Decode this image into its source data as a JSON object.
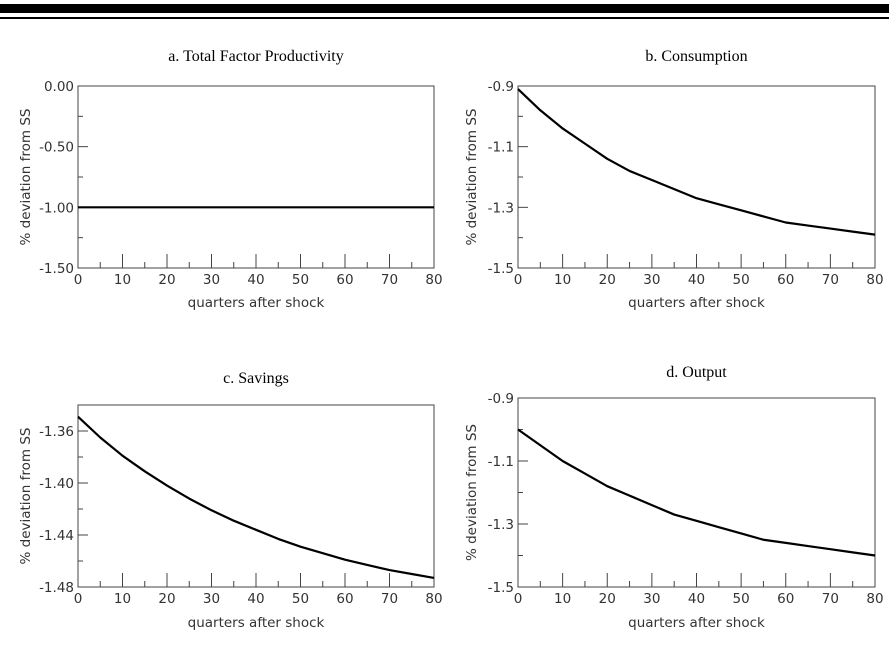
{
  "chart_data": [
    {
      "type": "line",
      "title": "a. Total Factor Productivity",
      "xlabel": "quarters after shock",
      "ylabel": "% deviation from SS",
      "xlim": [
        0,
        80
      ],
      "ylim": [
        -1.5,
        0.0
      ],
      "xticks": [
        "0",
        "10",
        "20",
        "30",
        "40",
        "50",
        "60",
        "70",
        "80"
      ],
      "yticks": [
        "0.00",
        "-0.50",
        "-1.00",
        "-1.50"
      ],
      "grid": false,
      "series": [
        {
          "x": [
            0,
            10,
            20,
            30,
            40,
            50,
            60,
            70,
            80
          ],
          "y": [
            -1.0,
            -1.0,
            -1.0,
            -1.0,
            -1.0,
            -1.0,
            -1.0,
            -1.0,
            -1.0
          ]
        }
      ]
    },
    {
      "type": "line",
      "title": "b. Consumption",
      "xlabel": "quarters after shock",
      "ylabel": "% deviation from SS",
      "xlim": [
        0,
        80
      ],
      "ylim": [
        -1.5,
        -0.9
      ],
      "xticks": [
        "0",
        "10",
        "20",
        "30",
        "40",
        "50",
        "60",
        "70",
        "80"
      ],
      "yticks": [
        "-0.9",
        "-1.1",
        "-1.3",
        "-1.5"
      ],
      "grid": false,
      "series": [
        {
          "x": [
            0,
            5,
            10,
            15,
            20,
            25,
            30,
            35,
            40,
            45,
            50,
            55,
            60,
            65,
            70,
            75,
            80
          ],
          "y": [
            -0.91,
            -0.98,
            -1.04,
            -1.09,
            -1.14,
            -1.18,
            -1.21,
            -1.24,
            -1.27,
            -1.29,
            -1.31,
            -1.33,
            -1.35,
            -1.36,
            -1.37,
            -1.38,
            -1.39
          ]
        }
      ]
    },
    {
      "type": "line",
      "title": "c. Savings",
      "xlabel": "quarters after shock",
      "ylabel": "% deviation from SS",
      "xlim": [
        0,
        80
      ],
      "ylim": [
        -1.48,
        -1.34
      ],
      "xticks": [
        "0",
        "10",
        "20",
        "30",
        "40",
        "50",
        "60",
        "70",
        "80"
      ],
      "yticks": [
        "-1.36",
        "-1.40",
        "-1.44",
        "-1.48"
      ],
      "grid": false,
      "series": [
        {
          "x": [
            0,
            5,
            10,
            15,
            20,
            25,
            30,
            35,
            40,
            45,
            50,
            55,
            60,
            65,
            70,
            75,
            80
          ],
          "y": [
            -1.349,
            -1.365,
            -1.379,
            -1.391,
            -1.402,
            -1.412,
            -1.421,
            -1.429,
            -1.436,
            -1.443,
            -1.449,
            -1.454,
            -1.459,
            -1.463,
            -1.467,
            -1.47,
            -1.473
          ]
        }
      ]
    },
    {
      "type": "line",
      "title": "d. Output",
      "xlabel": "quarters after shock",
      "ylabel": "% deviation from SS",
      "xlim": [
        0,
        80
      ],
      "ylim": [
        -1.5,
        -0.9
      ],
      "xticks": [
        "0",
        "10",
        "20",
        "30",
        "40",
        "50",
        "60",
        "70",
        "80"
      ],
      "yticks": [
        "-0.9",
        "-1.1",
        "-1.3",
        "-1.5"
      ],
      "grid": false,
      "series": [
        {
          "x": [
            0,
            5,
            10,
            15,
            20,
            25,
            30,
            35,
            40,
            45,
            50,
            55,
            60,
            65,
            70,
            75,
            80
          ],
          "y": [
            -1.0,
            -1.05,
            -1.1,
            -1.14,
            -1.18,
            -1.21,
            -1.24,
            -1.27,
            -1.29,
            -1.31,
            -1.33,
            -1.35,
            -1.36,
            -1.37,
            -1.38,
            -1.39,
            -1.4
          ]
        }
      ]
    }
  ]
}
